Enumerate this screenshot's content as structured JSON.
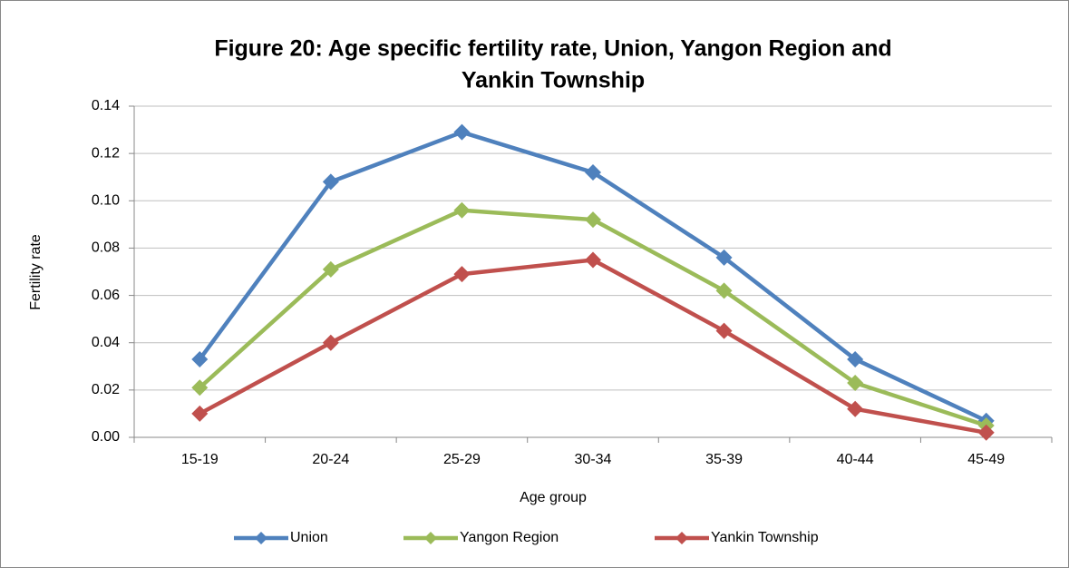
{
  "chart_data": {
    "type": "line",
    "title": [
      "Figure 20: Age specific fertility rate, Union, Yangon Region and",
      "Yankin Township"
    ],
    "x_label": "Age group",
    "y_label": "Fertility rate",
    "categories": [
      "15-19",
      "20-24",
      "25-29",
      "30-34",
      "35-39",
      "40-44",
      "45-49"
    ],
    "series": [
      {
        "name": "Union",
        "color": "#4f81bd",
        "values": [
          0.033,
          0.108,
          0.129,
          0.112,
          0.076,
          0.033,
          0.007
        ]
      },
      {
        "name": "Yangon Region",
        "color": "#9bbb59",
        "values": [
          0.021,
          0.071,
          0.096,
          0.092,
          0.062,
          0.023,
          0.005
        ]
      },
      {
        "name": "Yankin Township",
        "color": "#c0504d",
        "values": [
          0.01,
          0.04,
          0.069,
          0.075,
          0.045,
          0.012,
          0.002
        ]
      }
    ],
    "ylim": [
      0,
      0.14
    ],
    "yticks": [
      {
        "value": 0,
        "label": "0.00"
      },
      {
        "value": 0.02,
        "label": "0.02"
      },
      {
        "value": 0.04,
        "label": "0.04"
      },
      {
        "value": 0.06,
        "label": "0.06"
      },
      {
        "value": 0.08,
        "label": "0.08"
      },
      {
        "value": 0.1,
        "label": "0.10"
      },
      {
        "value": 0.12,
        "label": "0.12"
      },
      {
        "value": 0.14,
        "label": "0.14"
      }
    ],
    "grid": true,
    "legend": "bottom"
  }
}
